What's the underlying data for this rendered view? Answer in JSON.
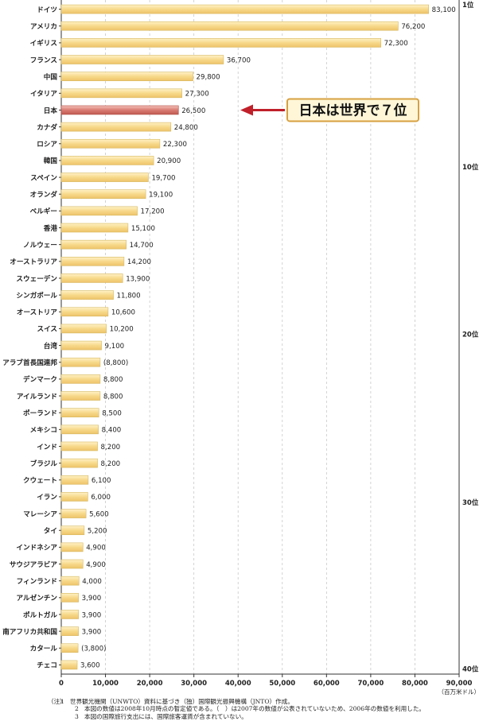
{
  "chart_data": {
    "type": "bar",
    "orientation": "horizontal",
    "categories": [
      "ドイツ",
      "アメリカ",
      "イギリス",
      "フランス",
      "中国",
      "イタリア",
      "日本",
      "カナダ",
      "ロシア",
      "韓国",
      "スペイン",
      "オランダ",
      "ベルギー",
      "香港",
      "ノルウェー",
      "オーストラリア",
      "スウェーデン",
      "シンガポール",
      "オーストリア",
      "スイス",
      "台湾",
      "アラブ首長国連邦",
      "デンマーク",
      "アイルランド",
      "ポーランド",
      "メキシコ",
      "インド",
      "ブラジル",
      "クウェート",
      "イラン",
      "マレーシア",
      "タイ",
      "インドネシア",
      "サウジアラビア",
      "フィンランド",
      "アルゼンチン",
      "ポルトガル",
      "南アフリカ共和国",
      "カタール",
      "チェコ"
    ],
    "values": [
      83100,
      76200,
      72300,
      36700,
      29800,
      27300,
      26500,
      24800,
      22300,
      20900,
      19700,
      19100,
      17200,
      15100,
      14700,
      14200,
      13900,
      11800,
      10600,
      10200,
      9100,
      8800,
      8800,
      8800,
      8500,
      8400,
      8200,
      8200,
      6100,
      6000,
      5600,
      5200,
      4900,
      4900,
      4000,
      3900,
      3900,
      3900,
      3800,
      3600
    ],
    "value_labels": [
      "83,100",
      "76,200",
      "72,300",
      "36,700",
      "29,800",
      "27,300",
      "26,500",
      "24,800",
      "22,300",
      "20,900",
      "19,700",
      "19,100",
      "17,200",
      "15,100",
      "14,700",
      "14,200",
      "13,900",
      "11,800",
      "10,600",
      "10,200",
      "9,100",
      "(8,800)",
      "8,800",
      "8,800",
      "8,500",
      "8,400",
      "8,200",
      "8,200",
      "6,100",
      "6,000",
      "5,600",
      "5,200",
      "4,900",
      "4,900",
      "4,000",
      "3,900",
      "3,900",
      "3,900",
      "(3,800)",
      "3,600"
    ],
    "highlight_category": "日本",
    "xlim": [
      0,
      90000
    ],
    "x_ticks": [
      0,
      10000,
      20000,
      30000,
      40000,
      50000,
      60000,
      70000,
      80000,
      90000
    ],
    "x_tick_labels": [
      "0",
      "10,000",
      "20,000",
      "30,000",
      "40,000",
      "50,000",
      "60,000",
      "70,000",
      "80,000",
      "90,000"
    ],
    "unit_label": "（百万米ドル）",
    "rank_markers": [
      {
        "rank": 1,
        "label": "1位"
      },
      {
        "rank": 10,
        "label": "10位"
      },
      {
        "rank": 20,
        "label": "20位"
      },
      {
        "rank": 30,
        "label": "30位"
      },
      {
        "rank": 40,
        "label": "40位"
      }
    ],
    "annotation": "日本は世界で７位",
    "grid": "vertical dashed",
    "colors": {
      "bar": "#f7d98a",
      "bar_highlight": "#d97b72",
      "bar_edge": "#d6b860",
      "grid": "#c8c8c8",
      "arrow": "#c0202a",
      "callout_border": "#d7a040",
      "callout_fill": "#fff6d8"
    }
  },
  "notes": {
    "prefix": "（注）",
    "items": [
      {
        "num": "1",
        "text": "世界観光機関（UNWTO）資料に基づき（独）国際観光振興機構（JNTO）作成。"
      },
      {
        "num": "2",
        "text": "本図の数値は2008年10月時点の暫定値である。（　）は2007年の数値が公表されていないため、2006年の数値を利用した。"
      },
      {
        "num": "3",
        "text": "本図の国際旅行支出には、国際旅客運賃が含まれていない。"
      }
    ]
  }
}
